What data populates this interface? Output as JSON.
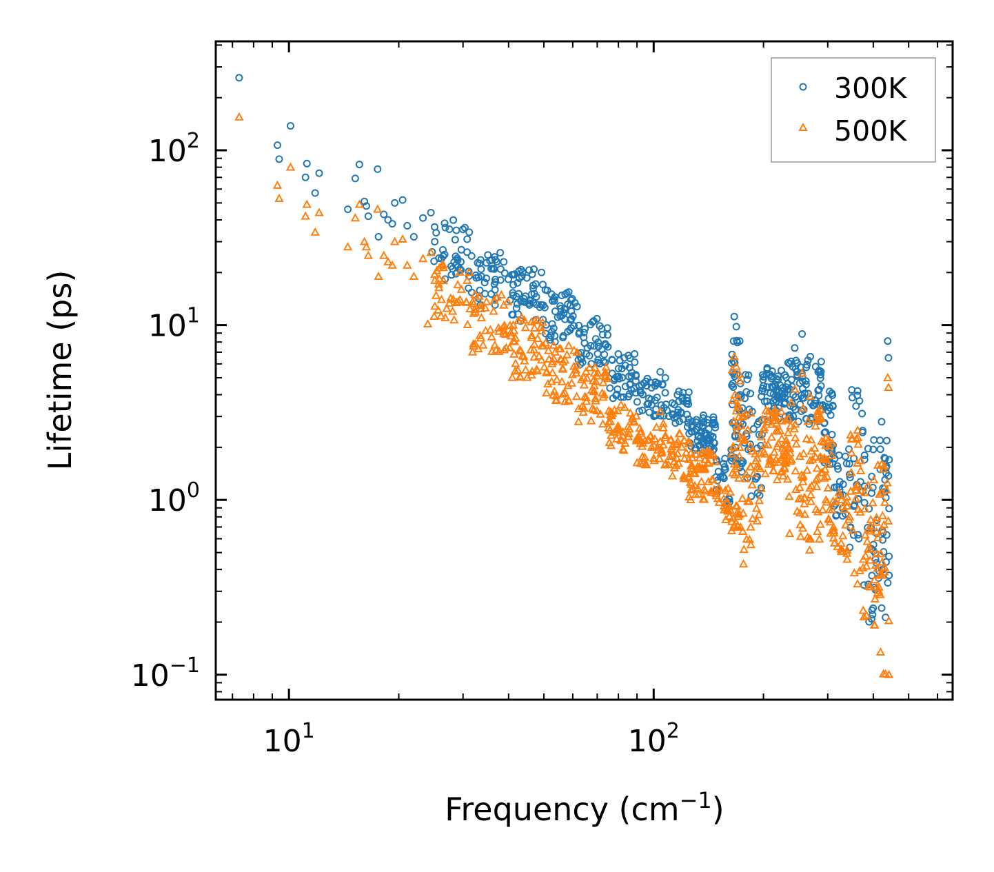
{
  "chart_data": {
    "type": "scatter",
    "xscale": "log",
    "yscale": "log",
    "xlim": [
      6.3,
      660
    ],
    "ylim": [
      0.072,
      420
    ],
    "xlabel": "Frequency (cm",
    "xlabel_sup": "−1",
    "xlabel_end": ")",
    "ylabel": "Lifetime (ps)",
    "grid": false,
    "legend_position": "top-right",
    "x_ticks": [
      {
        "value": 10,
        "base": "10",
        "exp": "1"
      },
      {
        "value": 100,
        "base": "10",
        "exp": "2"
      }
    ],
    "y_ticks": [
      {
        "value": 0.1,
        "base": "10",
        "exp": "−1"
      },
      {
        "value": 1,
        "base": "10",
        "exp": "0"
      },
      {
        "value": 10,
        "base": "10",
        "exp": "1"
      },
      {
        "value": 100,
        "base": "10",
        "exp": "2"
      }
    ],
    "series": [
      {
        "name": "300K",
        "marker": "circle",
        "color": "#1f77b4",
        "points": [
          [
            7.3,
            260
          ],
          [
            9.3,
            107
          ],
          [
            9.4,
            89
          ],
          [
            10.1,
            138
          ],
          [
            11.1,
            70
          ],
          [
            11.2,
            84
          ],
          [
            11.8,
            57
          ],
          [
            12.1,
            74
          ],
          [
            14.5,
            46
          ],
          [
            15.2,
            69
          ],
          [
            15.6,
            83
          ],
          [
            16.1,
            51
          ],
          [
            16.3,
            48
          ],
          [
            16.5,
            42
          ],
          [
            17.5,
            78
          ],
          [
            17.6,
            32
          ],
          [
            18.2,
            43
          ],
          [
            18.7,
            40
          ],
          [
            19.2,
            38
          ],
          [
            19.5,
            50
          ],
          [
            20.5,
            52
          ],
          [
            21.1,
            37
          ],
          [
            22.0,
            32
          ],
          [
            23.3,
            41
          ],
          [
            24.5,
            44
          ],
          [
            25.1,
            30
          ],
          [
            26.2,
            24
          ],
          [
            28.1,
            21
          ],
          [
            29.7,
            27
          ],
          [
            30.8,
            31
          ],
          [
            31.2,
            34
          ],
          [
            33.7,
            19
          ],
          [
            36.4,
            21
          ],
          [
            38.8,
            23
          ],
          [
            41.2,
            17
          ],
          [
            43.5,
            19
          ],
          [
            46.3,
            15
          ],
          [
            49.8,
            13
          ],
          [
            53.7,
            12
          ],
          [
            57.1,
            10.8
          ],
          [
            60.4,
            9.9
          ],
          [
            64.3,
            8.5
          ],
          [
            68.7,
            7.6
          ],
          [
            73.2,
            6.8
          ],
          [
            79.6,
            4.3
          ],
          [
            85.2,
            3.9
          ],
          [
            92.1,
            4.1
          ],
          [
            98.7,
            3.5
          ],
          [
            104.2,
            5.4
          ],
          [
            112.5,
            3.1
          ],
          [
            124.7,
            2.9
          ],
          [
            136.5,
            2.6
          ],
          [
            145.3,
            2.3
          ],
          [
            157.2,
            1.5
          ],
          [
            166.3,
            11.2
          ],
          [
            168.5,
            9.8
          ],
          [
            172.1,
            8.1
          ],
          [
            178.6,
            5.2
          ],
          [
            186.2,
            3.2
          ],
          [
            197.4,
            3.9
          ],
          [
            210.3,
            5.1
          ],
          [
            223.8,
            5.5
          ],
          [
            238.1,
            6.2
          ],
          [
            243.5,
            7.4
          ],
          [
            255.2,
            8.9
          ],
          [
            268.7,
            6.6
          ],
          [
            282.5,
            5.4
          ],
          [
            301.6,
            3.8
          ],
          [
            322.1,
            1.8
          ],
          [
            344.5,
            1.4
          ],
          [
            362.4,
            4.2
          ],
          [
            378.5,
            1.8
          ],
          [
            401.3,
            2.2
          ],
          [
            421.6,
            2.8
          ],
          [
            438.1,
            8.1
          ],
          [
            440.2,
            6.5
          ],
          [
            441.5,
            0.37
          ]
        ],
        "bands": [
          [
            24,
            31,
            18,
            40,
            30
          ],
          [
            31,
            40,
            13,
            26,
            40
          ],
          [
            40,
            50,
            10.5,
            21,
            45
          ],
          [
            50,
            62,
            8,
            16,
            45
          ],
          [
            62,
            75,
            5.8,
            11,
            40
          ],
          [
            75,
            90,
            3.8,
            7,
            40
          ],
          [
            90,
            110,
            3.0,
            5,
            40
          ],
          [
            110,
            125,
            2.6,
            4.2,
            30
          ],
          [
            125,
            148,
            1.9,
            3.1,
            55
          ],
          [
            148,
            163,
            0.9,
            1.8,
            20
          ],
          [
            163,
            172,
            1.6,
            9.8,
            35
          ],
          [
            172,
            185,
            1.3,
            5.5,
            25
          ],
          [
            185,
            198,
            1.0,
            3.0,
            15
          ],
          [
            198,
            232,
            2.8,
            5.8,
            60
          ],
          [
            232,
            290,
            2.7,
            6.5,
            75
          ],
          [
            290,
            312,
            1.6,
            4.3,
            30
          ],
          [
            312,
            340,
            0.8,
            1.8,
            20
          ],
          [
            340,
            375,
            0.5,
            4.3,
            25
          ],
          [
            375,
            405,
            0.2,
            2.6,
            25
          ],
          [
            405,
            442,
            0.2,
            2.8,
            35
          ]
        ]
      },
      {
        "name": "500K",
        "marker": "triangle",
        "color": "#ff7f0e",
        "points": [
          [
            7.3,
            155
          ],
          [
            9.3,
            63
          ],
          [
            9.4,
            53
          ],
          [
            10.1,
            80
          ],
          [
            11.1,
            42
          ],
          [
            11.2,
            49
          ],
          [
            11.8,
            34
          ],
          [
            12.1,
            44
          ],
          [
            14.5,
            28
          ],
          [
            15.2,
            41
          ],
          [
            15.6,
            49
          ],
          [
            16.1,
            30
          ],
          [
            16.3,
            28
          ],
          [
            16.5,
            25
          ],
          [
            17.5,
            46
          ],
          [
            17.6,
            19
          ],
          [
            18.2,
            25
          ],
          [
            18.7,
            23
          ],
          [
            19.2,
            22
          ],
          [
            19.5,
            30
          ],
          [
            20.5,
            31
          ],
          [
            21.1,
            22
          ],
          [
            22.0,
            19
          ],
          [
            23.3,
            24
          ],
          [
            24.5,
            26
          ],
          [
            25.1,
            18
          ],
          [
            26.2,
            14
          ],
          [
            28.1,
            12
          ],
          [
            29.7,
            16
          ],
          [
            30.8,
            18
          ],
          [
            31.2,
            20
          ],
          [
            33.7,
            11
          ],
          [
            36.4,
            12
          ],
          [
            38.8,
            13
          ],
          [
            41.2,
            10
          ],
          [
            43.5,
            11
          ],
          [
            46.3,
            8.7
          ],
          [
            49.8,
            7.6
          ],
          [
            53.7,
            7.0
          ],
          [
            57.1,
            6.3
          ],
          [
            60.4,
            5.8
          ],
          [
            64.3,
            5.0
          ],
          [
            68.7,
            4.5
          ],
          [
            73.2,
            4.0
          ],
          [
            79.6,
            2.5
          ],
          [
            85.2,
            2.3
          ],
          [
            92.1,
            2.4
          ],
          [
            98.7,
            2.0
          ],
          [
            104.2,
            3.2
          ],
          [
            112.5,
            1.8
          ],
          [
            124.7,
            1.7
          ],
          [
            136.5,
            1.5
          ],
          [
            145.3,
            1.3
          ],
          [
            157.2,
            0.9
          ],
          [
            166.3,
            6.6
          ],
          [
            168.5,
            5.8
          ],
          [
            172.1,
            4.8
          ],
          [
            176.3,
            0.43
          ],
          [
            176.8,
            0.52
          ],
          [
            178.6,
            3.1
          ],
          [
            186.2,
            1.9
          ],
          [
            197.4,
            2.3
          ],
          [
            210.3,
            3.0
          ],
          [
            223.8,
            3.2
          ],
          [
            238.1,
            3.6
          ],
          [
            243.5,
            4.3
          ],
          [
            255.2,
            5.3
          ],
          [
            268.7,
            3.9
          ],
          [
            282.5,
            3.2
          ],
          [
            301.6,
            2.2
          ],
          [
            322.1,
            1.1
          ],
          [
            344.5,
            0.8
          ],
          [
            362.4,
            2.5
          ],
          [
            378.5,
            1.1
          ],
          [
            401.3,
            1.3
          ],
          [
            421.6,
            1.6
          ],
          [
            438.1,
            5.0
          ],
          [
            440.2,
            4.4
          ],
          [
            441.5,
            0.1
          ]
        ],
        "bands": [
          [
            24,
            31,
            10,
            24,
            30
          ],
          [
            31,
            40,
            7.0,
            15,
            40
          ],
          [
            40,
            50,
            5.0,
            11,
            45
          ],
          [
            50,
            62,
            3.6,
            8,
            45
          ],
          [
            62,
            75,
            2.6,
            6,
            40
          ],
          [
            75,
            90,
            1.9,
            3.5,
            40
          ],
          [
            90,
            110,
            1.5,
            2.8,
            40
          ],
          [
            110,
            125,
            1.3,
            2.4,
            30
          ],
          [
            125,
            148,
            1.0,
            1.9,
            55
          ],
          [
            148,
            163,
            0.75,
            1.2,
            20
          ],
          [
            163,
            172,
            0.65,
            5.8,
            35
          ],
          [
            172,
            185,
            0.55,
            3.2,
            25
          ],
          [
            185,
            198,
            0.7,
            1.9,
            15
          ],
          [
            198,
            232,
            1.3,
            3.3,
            60
          ],
          [
            232,
            290,
            0.5,
            3.5,
            75
          ],
          [
            290,
            312,
            0.6,
            2.4,
            30
          ],
          [
            312,
            340,
            0.45,
            1.1,
            20
          ],
          [
            340,
            375,
            0.3,
            2.4,
            25
          ],
          [
            375,
            405,
            0.19,
            1.5,
            25
          ],
          [
            405,
            442,
            0.1,
            1.6,
            35
          ]
        ]
      }
    ]
  }
}
